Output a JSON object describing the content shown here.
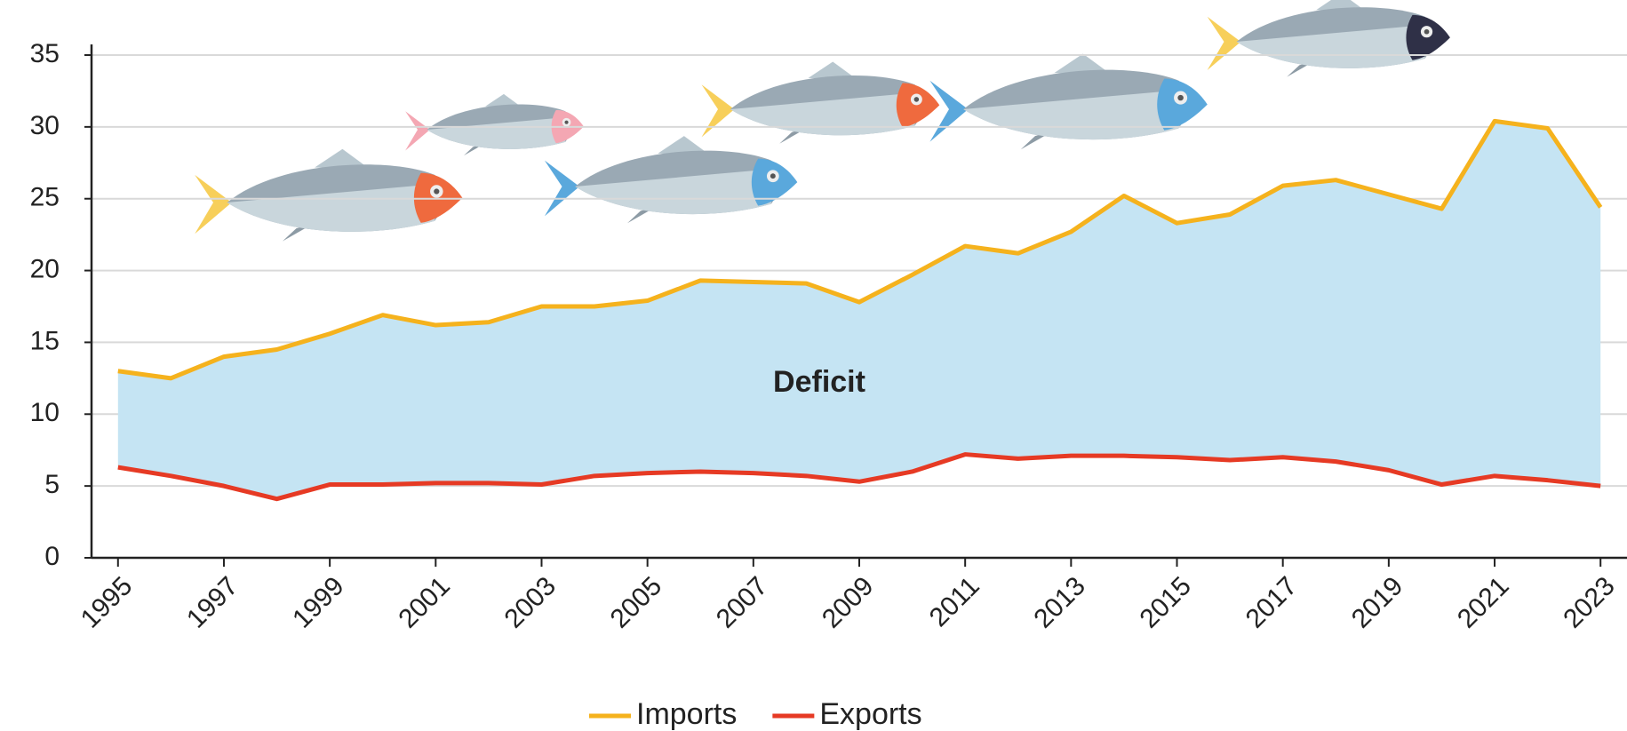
{
  "chart_data": {
    "type": "line",
    "annotation": "Deficit",
    "x": [
      1995,
      1996,
      1997,
      1998,
      1999,
      2000,
      2001,
      2002,
      2003,
      2004,
      2005,
      2006,
      2007,
      2008,
      2009,
      2010,
      2011,
      2012,
      2013,
      2014,
      2015,
      2016,
      2017,
      2018,
      2019,
      2020,
      2021,
      2022,
      2023
    ],
    "series": [
      {
        "name": "Imports",
        "color": "#f5b21d",
        "values": [
          13.0,
          12.5,
          14.0,
          14.5,
          15.6,
          16.9,
          16.2,
          16.4,
          17.5,
          17.5,
          17.9,
          19.3,
          19.2,
          19.1,
          17.8,
          19.7,
          21.7,
          21.2,
          22.7,
          25.2,
          23.3,
          23.9,
          25.9,
          26.3,
          25.3,
          24.3,
          30.4,
          29.9,
          24.4
        ]
      },
      {
        "name": "Exports",
        "color": "#e63a24",
        "values": [
          6.3,
          5.7,
          5.0,
          4.1,
          5.1,
          5.1,
          5.2,
          5.2,
          5.1,
          5.7,
          5.9,
          6.0,
          5.9,
          5.7,
          5.3,
          6.0,
          7.2,
          6.9,
          7.1,
          7.1,
          7.0,
          6.8,
          7.0,
          6.7,
          6.1,
          5.1,
          5.7,
          5.4,
          5.0
        ]
      }
    ],
    "fill_between_color": "#c5e4f3",
    "xlim": [
      1994.5,
      2023.5
    ],
    "xticks": [
      1995,
      1997,
      1999,
      2001,
      2003,
      2005,
      2007,
      2009,
      2011,
      2013,
      2015,
      2017,
      2019,
      2021,
      2023
    ],
    "ylim": [
      0,
      35
    ],
    "yticks": [
      0,
      5,
      10,
      15,
      20,
      25,
      30,
      35
    ],
    "grid": true,
    "legend": "bottom"
  }
}
